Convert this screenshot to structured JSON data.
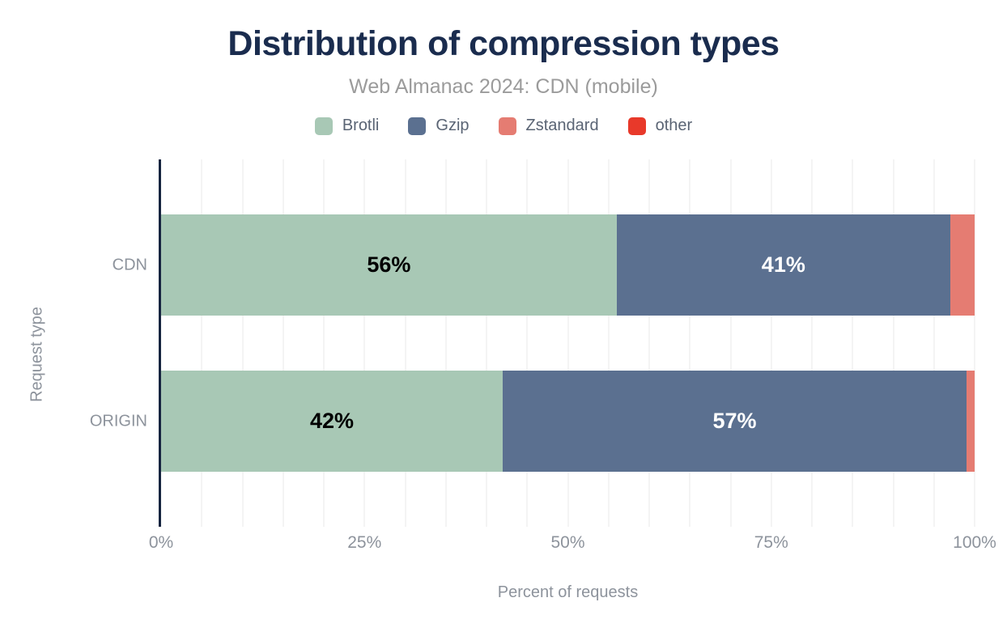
{
  "header": {
    "title": "Distribution of compression types",
    "subtitle": "Web Almanac 2024: CDN (mobile)"
  },
  "colors": {
    "title_text": "#1a2c4e",
    "subtitle_text": "#9b9b9b",
    "legend_text": "#5a6474",
    "axis_text": "#8d939c",
    "axis_line": "#16243f",
    "grid_line": "#f4f4f4",
    "background": "#ffffff"
  },
  "chart_data": {
    "type": "bar",
    "orientation": "horizontal",
    "stacked": true,
    "title": "Distribution of compression types",
    "subtitle": "Web Almanac 2024: CDN (mobile)",
    "categories": [
      "CDN",
      "ORIGIN"
    ],
    "series": [
      {
        "name": "Brotli",
        "color": "#a8c8b5",
        "label_color": "#000000",
        "values": [
          56,
          42
        ],
        "labels": [
          "56%",
          "42%"
        ]
      },
      {
        "name": "Gzip",
        "color": "#5b7090",
        "label_color": "#ffffff",
        "values": [
          41,
          57
        ],
        "labels": [
          "41%",
          "57%"
        ]
      },
      {
        "name": "Zstandard",
        "color": "#e57c72",
        "label_color": "#ffffff",
        "values": [
          3,
          1
        ],
        "labels": [
          "",
          ""
        ]
      },
      {
        "name": "other",
        "color": "#e8392a",
        "label_color": "#ffffff",
        "values": [
          0,
          0
        ],
        "labels": [
          "",
          ""
        ]
      }
    ],
    "xlabel": "Percent of requests",
    "ylabel": "Request type",
    "x_ticks": [
      "0%",
      "25%",
      "50%",
      "75%",
      "100%"
    ],
    "x_tick_values": [
      0,
      25,
      50,
      75,
      100
    ],
    "xlim": [
      0,
      100
    ],
    "grid_interval": 5,
    "legend_position": "top",
    "grid": true
  }
}
